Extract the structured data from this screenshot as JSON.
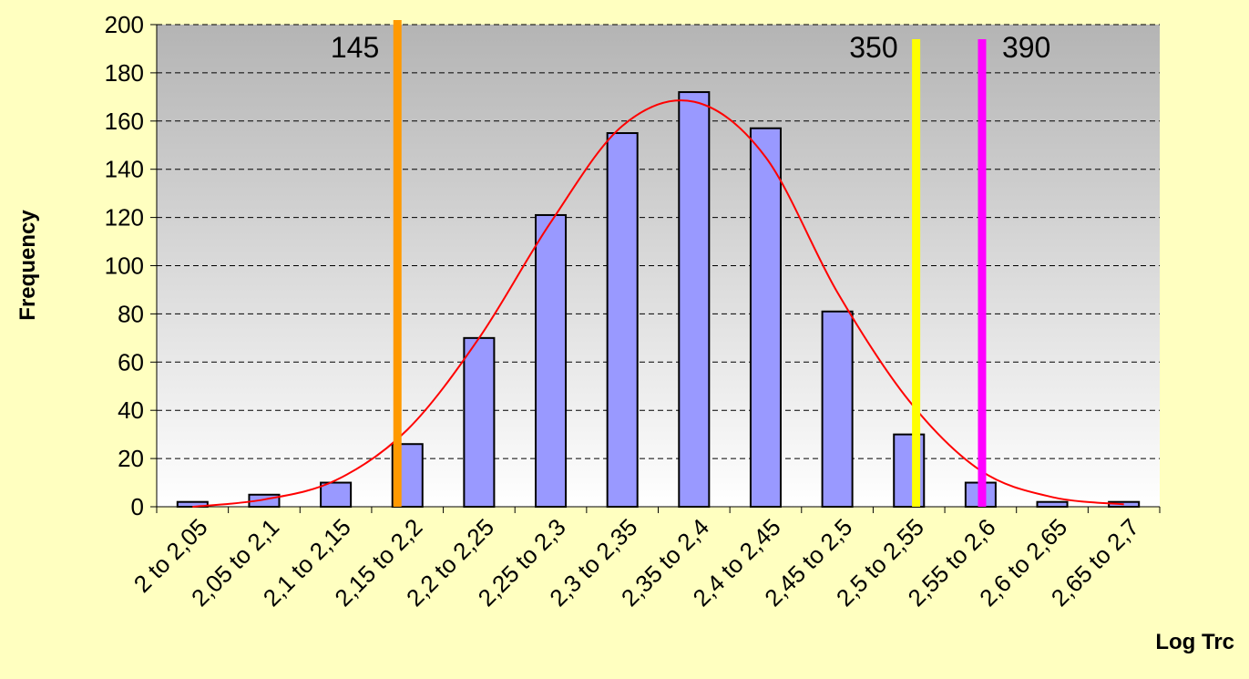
{
  "chart_data": {
    "type": "bar",
    "xlabel": "Log Trc",
    "ylabel": "Frequency",
    "categories": [
      "2 to 2,05",
      "2,05 to 2,1",
      "2,1 to 2,15",
      "2,15 to 2,2",
      "2,2 to 2,25",
      "2,25 to 2,3",
      "2,3 to 2,35",
      "2,35 to 2,4",
      "2,4 to 2,45",
      "2,45 to 2,5",
      "2,5 to 2,55",
      "2,55 to 2,6",
      "2,6 to 2,65",
      "2,65 to 2,7"
    ],
    "values": [
      2,
      5,
      10,
      26,
      70,
      121,
      155,
      172,
      157,
      81,
      30,
      10,
      2,
      2
    ],
    "color": "#9999ff",
    "fit": {
      "color": "#ff0000",
      "values": [
        0,
        3,
        11,
        32,
        70,
        118,
        158,
        168,
        145,
        89,
        44,
        15,
        4,
        1
      ]
    },
    "xlim": [
      2,
      2.7
    ],
    "markers": [
      {
        "label": "145",
        "x": 2.168,
        "color": "#ff9900"
      },
      {
        "label": "350",
        "x": 2.53,
        "color": "#ffff00"
      },
      {
        "label": "390",
        "x": 2.576,
        "color": "#ff00ff"
      }
    ],
    "ylim": [
      0,
      200
    ],
    "yticks": [
      0,
      20,
      40,
      60,
      80,
      100,
      120,
      140,
      160,
      180,
      200
    ],
    "grid": true
  }
}
